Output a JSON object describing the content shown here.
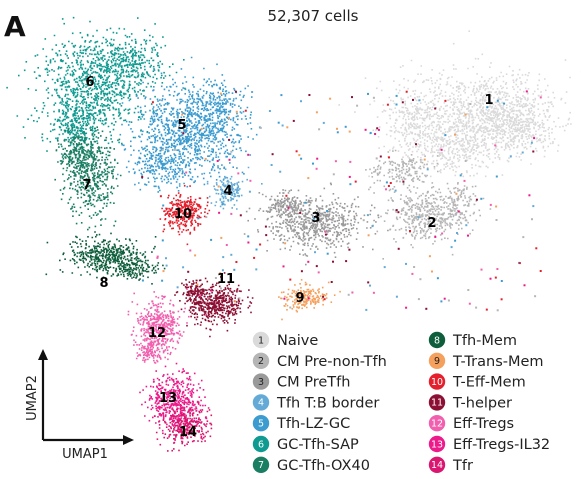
{
  "panel_letter": "A",
  "chart_data": {
    "type": "scatter",
    "title": "52,307 cells",
    "xlabel": "UMAP1",
    "ylabel": "UMAP2",
    "clusters": [
      {
        "id": "1",
        "name": "Naive",
        "color": "#dadada"
      },
      {
        "id": "2",
        "name": "CM Pre-non-Tfh",
        "color": "#b5b5b5"
      },
      {
        "id": "3",
        "name": "CM PreTfh",
        "color": "#9a9a9a"
      },
      {
        "id": "4",
        "name": "Tfh T:B border",
        "color": "#63abd6"
      },
      {
        "id": "5",
        "name": "Tfh-LZ-GC",
        "color": "#3c9cd0"
      },
      {
        "id": "6",
        "name": "GC-Tfh-SAP",
        "color": "#0f9b91"
      },
      {
        "id": "7",
        "name": "GC-Tfh-OX40",
        "color": "#1a7e63"
      },
      {
        "id": "8",
        "name": "Tfh-Mem",
        "color": "#0e5e3c"
      },
      {
        "id": "9",
        "name": "T-Trans-Mem",
        "color": "#f5a05c"
      },
      {
        "id": "10",
        "name": "T-Eff-Mem",
        "color": "#e5202c"
      },
      {
        "id": "11",
        "name": "T-helper",
        "color": "#8c1034"
      },
      {
        "id": "12",
        "name": "Eff-Tregs",
        "color": "#f25fae"
      },
      {
        "id": "13",
        "name": "Eff-Tregs-IL32",
        "color": "#ec1a8a"
      },
      {
        "id": "14",
        "name": "Tfr",
        "color": "#db1670"
      }
    ]
  }
}
